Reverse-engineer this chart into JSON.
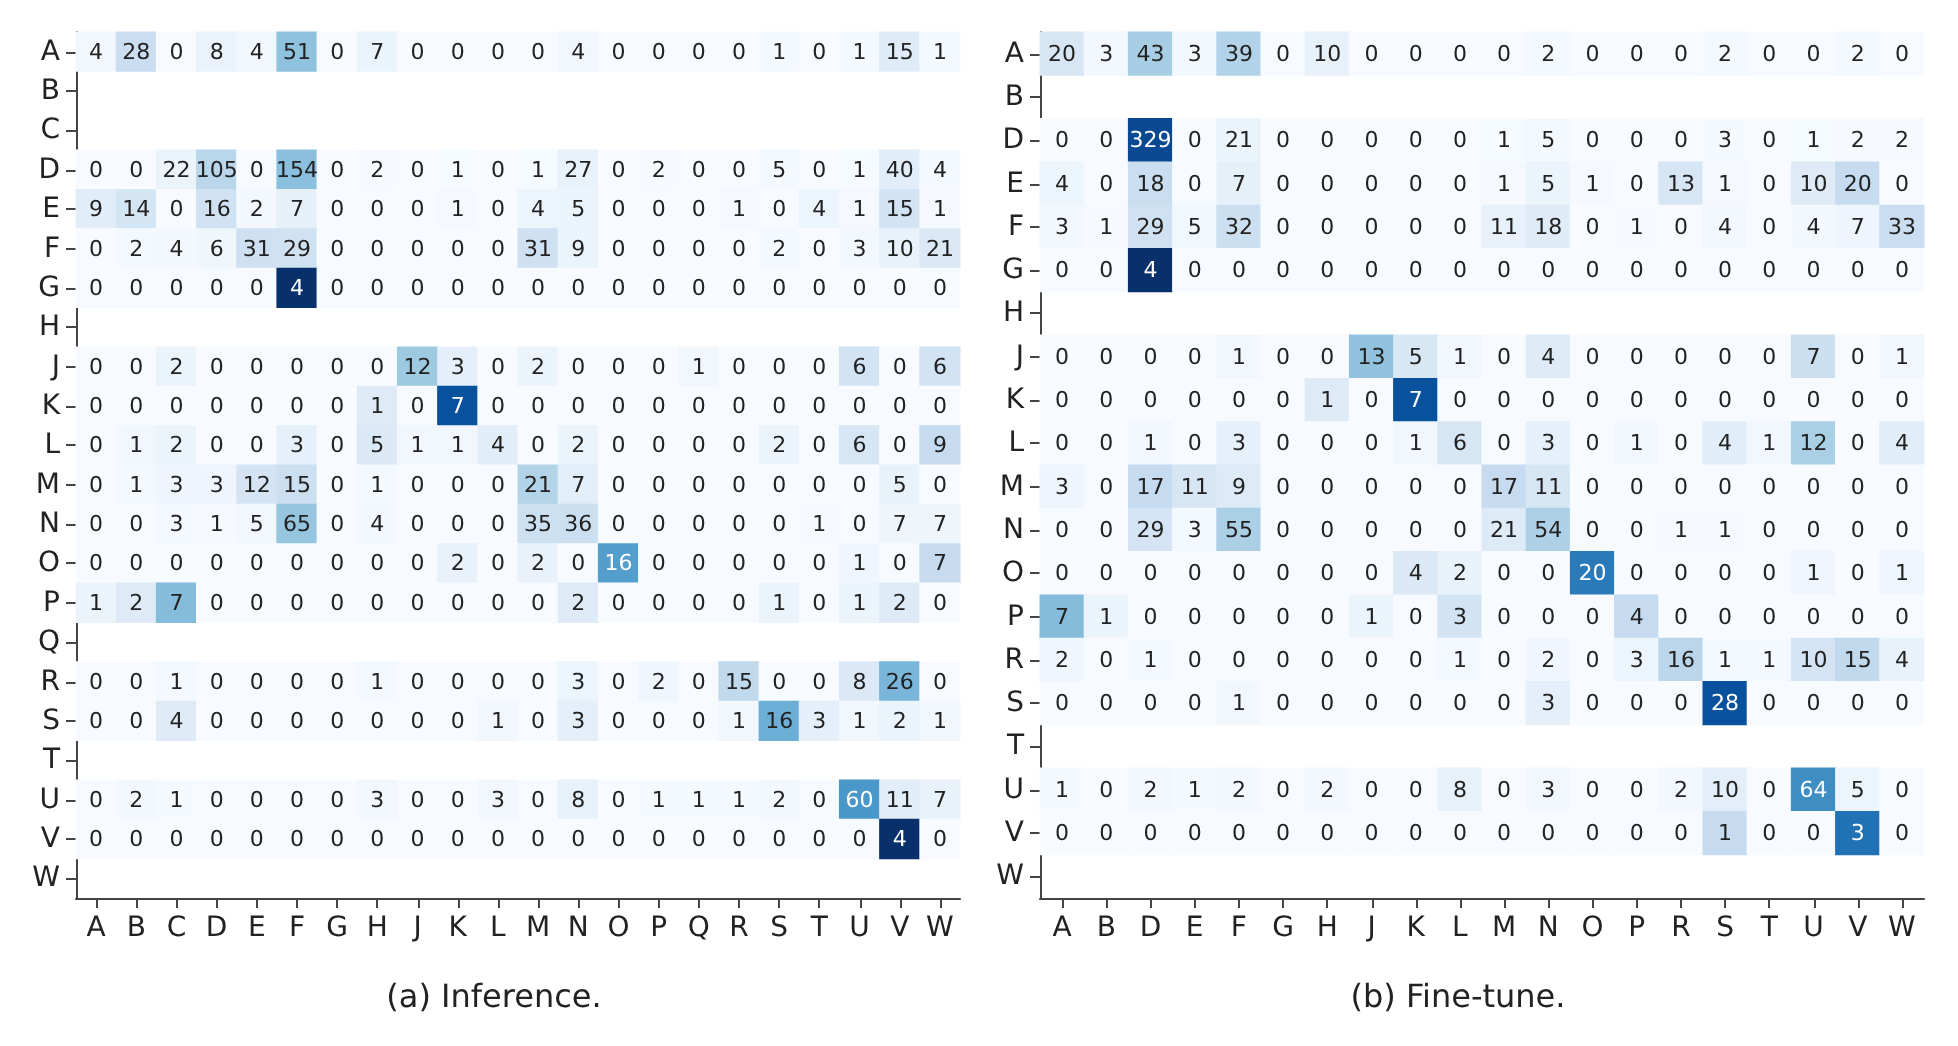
{
  "chart_data": [
    {
      "type": "heatmap",
      "data_labels": true,
      "annotations": [
        "(a) Inference."
      ],
      "categories": [
        "A",
        "B",
        "C",
        "D",
        "E",
        "F",
        "G",
        "H",
        "J",
        "K",
        "L",
        "M",
        "N",
        "O",
        "P",
        "Q",
        "R",
        "S",
        "T",
        "U",
        "V",
        "W"
      ],
      "y_categories": [
        "A",
        "B",
        "C",
        "D",
        "E",
        "F",
        "G",
        "H",
        "J",
        "K",
        "L",
        "M",
        "N",
        "O",
        "P",
        "Q",
        "R",
        "S",
        "T",
        "U",
        "V",
        "W"
      ],
      "cells": [
        [
          4,
          28,
          0,
          8,
          4,
          51,
          0,
          7,
          0,
          0,
          0,
          0,
          4,
          0,
          0,
          0,
          0,
          1,
          0,
          1,
          15,
          1
        ],
        [
          null,
          null,
          null,
          null,
          null,
          null,
          null,
          null,
          null,
          null,
          null,
          null,
          null,
          null,
          null,
          null,
          null,
          null,
          null,
          null,
          null,
          null
        ],
        [
          null,
          null,
          null,
          null,
          null,
          null,
          null,
          null,
          null,
          null,
          null,
          null,
          null,
          null,
          null,
          null,
          null,
          null,
          null,
          null,
          null,
          null
        ],
        [
          0,
          0,
          22,
          105,
          0,
          154,
          0,
          2,
          0,
          1,
          0,
          1,
          27,
          0,
          2,
          0,
          0,
          5,
          0,
          1,
          40,
          4
        ],
        [
          9,
          14,
          0,
          16,
          2,
          7,
          0,
          0,
          0,
          1,
          0,
          4,
          5,
          0,
          0,
          0,
          1,
          0,
          4,
          1,
          15,
          1
        ],
        [
          0,
          2,
          4,
          6,
          31,
          29,
          0,
          0,
          0,
          0,
          0,
          31,
          9,
          0,
          0,
          0,
          0,
          2,
          0,
          3,
          10,
          21
        ],
        [
          0,
          0,
          0,
          0,
          0,
          4,
          0,
          0,
          0,
          0,
          0,
          0,
          0,
          0,
          0,
          0,
          0,
          0,
          0,
          0,
          0,
          0
        ],
        [
          null,
          null,
          null,
          null,
          null,
          null,
          null,
          null,
          null,
          null,
          null,
          null,
          null,
          null,
          null,
          null,
          null,
          null,
          null,
          null,
          null,
          null
        ],
        [
          0,
          0,
          2,
          0,
          0,
          0,
          0,
          0,
          12,
          3,
          0,
          2,
          0,
          0,
          0,
          1,
          0,
          0,
          0,
          6,
          0,
          6
        ],
        [
          0,
          0,
          0,
          0,
          0,
          0,
          0,
          1,
          0,
          7,
          0,
          0,
          0,
          0,
          0,
          0,
          0,
          0,
          0,
          0,
          0,
          0
        ],
        [
          0,
          1,
          2,
          0,
          0,
          3,
          0,
          5,
          1,
          1,
          4,
          0,
          2,
          0,
          0,
          0,
          0,
          2,
          0,
          6,
          0,
          9
        ],
        [
          0,
          1,
          3,
          3,
          12,
          15,
          0,
          1,
          0,
          0,
          0,
          21,
          7,
          0,
          0,
          0,
          0,
          0,
          0,
          0,
          5,
          0
        ],
        [
          0,
          0,
          3,
          1,
          5,
          65,
          0,
          4,
          0,
          0,
          0,
          35,
          36,
          0,
          0,
          0,
          0,
          0,
          1,
          0,
          7,
          7
        ],
        [
          0,
          0,
          0,
          0,
          0,
          0,
          0,
          0,
          0,
          2,
          0,
          2,
          0,
          16,
          0,
          0,
          0,
          0,
          0,
          1,
          0,
          7
        ],
        [
          1,
          2,
          7,
          0,
          0,
          0,
          0,
          0,
          0,
          0,
          0,
          0,
          2,
          0,
          0,
          0,
          0,
          1,
          0,
          1,
          2,
          0
        ],
        [
          null,
          null,
          null,
          null,
          null,
          null,
          null,
          null,
          null,
          null,
          null,
          null,
          null,
          null,
          null,
          null,
          null,
          null,
          null,
          null,
          null,
          null
        ],
        [
          0,
          0,
          1,
          0,
          0,
          0,
          0,
          1,
          0,
          0,
          0,
          0,
          3,
          0,
          2,
          0,
          15,
          0,
          0,
          8,
          26,
          0
        ],
        [
          0,
          0,
          4,
          0,
          0,
          0,
          0,
          0,
          0,
          0,
          1,
          0,
          3,
          0,
          0,
          0,
          1,
          16,
          3,
          1,
          2,
          1
        ],
        [
          null,
          null,
          null,
          null,
          null,
          null,
          null,
          null,
          null,
          null,
          null,
          null,
          null,
          null,
          null,
          null,
          null,
          null,
          null,
          null,
          null,
          null
        ],
        [
          0,
          2,
          1,
          0,
          0,
          0,
          0,
          3,
          0,
          0,
          3,
          0,
          8,
          0,
          1,
          1,
          1,
          2,
          0,
          60,
          11,
          7
        ],
        [
          0,
          0,
          0,
          0,
          0,
          0,
          0,
          0,
          0,
          0,
          0,
          0,
          0,
          0,
          0,
          0,
          0,
          0,
          0,
          0,
          4,
          0
        ],
        [
          null,
          null,
          null,
          null,
          null,
          null,
          null,
          null,
          null,
          null,
          null,
          null,
          null,
          null,
          null,
          null,
          null,
          null,
          null,
          null,
          null,
          null
        ]
      ]
    },
    {
      "type": "heatmap",
      "data_labels": true,
      "annotations": [
        "(b) Fine-tune."
      ],
      "categories": [
        "A",
        "B",
        "D",
        "E",
        "F",
        "G",
        "H",
        "J",
        "K",
        "L",
        "M",
        "N",
        "O",
        "P",
        "R",
        "S",
        "T",
        "U",
        "V",
        "W"
      ],
      "y_categories": [
        "A",
        "B",
        "D",
        "E",
        "F",
        "G",
        "H",
        "J",
        "K",
        "L",
        "M",
        "N",
        "O",
        "P",
        "R",
        "S",
        "T",
        "U",
        "V",
        "W"
      ],
      "cells": [
        [
          20,
          3,
          43,
          3,
          39,
          0,
          10,
          0,
          0,
          0,
          0,
          2,
          0,
          0,
          0,
          2,
          0,
          0,
          2,
          0
        ],
        [
          null,
          null,
          null,
          null,
          null,
          null,
          null,
          null,
          null,
          null,
          null,
          null,
          null,
          null,
          null,
          null,
          null,
          null,
          null,
          null
        ],
        [
          0,
          0,
          329,
          0,
          21,
          0,
          0,
          0,
          0,
          0,
          1,
          5,
          0,
          0,
          0,
          3,
          0,
          1,
          2,
          2
        ],
        [
          4,
          0,
          18,
          0,
          7,
          0,
          0,
          0,
          0,
          0,
          1,
          5,
          1,
          0,
          13,
          1,
          0,
          10,
          20,
          0
        ],
        [
          3,
          1,
          29,
          5,
          32,
          0,
          0,
          0,
          0,
          0,
          11,
          18,
          0,
          1,
          0,
          4,
          0,
          4,
          7,
          33
        ],
        [
          0,
          0,
          4,
          0,
          0,
          0,
          0,
          0,
          0,
          0,
          0,
          0,
          0,
          0,
          0,
          0,
          0,
          0,
          0,
          0
        ],
        [
          null,
          null,
          null,
          null,
          null,
          null,
          null,
          null,
          null,
          null,
          null,
          null,
          null,
          null,
          null,
          null,
          null,
          null,
          null,
          null
        ],
        [
          0,
          0,
          0,
          0,
          1,
          0,
          0,
          13,
          5,
          1,
          0,
          4,
          0,
          0,
          0,
          0,
          0,
          7,
          0,
          1
        ],
        [
          0,
          0,
          0,
          0,
          0,
          0,
          1,
          0,
          7,
          0,
          0,
          0,
          0,
          0,
          0,
          0,
          0,
          0,
          0,
          0
        ],
        [
          0,
          0,
          1,
          0,
          3,
          0,
          0,
          0,
          1,
          6,
          0,
          3,
          0,
          1,
          0,
          4,
          1,
          12,
          0,
          4
        ],
        [
          3,
          0,
          17,
          11,
          9,
          0,
          0,
          0,
          0,
          0,
          17,
          11,
          0,
          0,
          0,
          0,
          0,
          0,
          0,
          0
        ],
        [
          0,
          0,
          29,
          3,
          55,
          0,
          0,
          0,
          0,
          0,
          21,
          54,
          0,
          0,
          1,
          1,
          0,
          0,
          0,
          0
        ],
        [
          0,
          0,
          0,
          0,
          0,
          0,
          0,
          0,
          4,
          2,
          0,
          0,
          20,
          0,
          0,
          0,
          0,
          1,
          0,
          1
        ],
        [
          7,
          1,
          0,
          0,
          0,
          0,
          0,
          1,
          0,
          3,
          0,
          0,
          0,
          4,
          0,
          0,
          0,
          0,
          0,
          0
        ],
        [
          2,
          0,
          1,
          0,
          0,
          0,
          0,
          0,
          0,
          1,
          0,
          2,
          0,
          3,
          16,
          1,
          1,
          10,
          15,
          4
        ],
        [
          0,
          0,
          0,
          0,
          1,
          0,
          0,
          0,
          0,
          0,
          0,
          3,
          0,
          0,
          0,
          28,
          0,
          0,
          0,
          0
        ],
        [
          null,
          null,
          null,
          null,
          null,
          null,
          null,
          null,
          null,
          null,
          null,
          null,
          null,
          null,
          null,
          null,
          null,
          null,
          null,
          null
        ],
        [
          1,
          0,
          2,
          1,
          2,
          0,
          2,
          0,
          0,
          8,
          0,
          3,
          0,
          0,
          2,
          10,
          0,
          64,
          5,
          0
        ],
        [
          0,
          0,
          0,
          0,
          0,
          0,
          0,
          0,
          0,
          0,
          0,
          0,
          0,
          0,
          0,
          1,
          0,
          0,
          3,
          0
        ],
        [
          null,
          null,
          null,
          null,
          null,
          null,
          null,
          null,
          null,
          null,
          null,
          null,
          null,
          null,
          null,
          null,
          null,
          null,
          null,
          null
        ]
      ]
    }
  ]
}
